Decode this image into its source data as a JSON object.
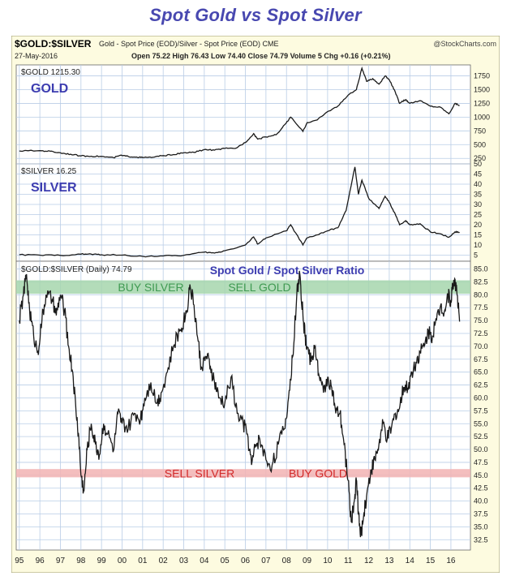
{
  "page_title": "Spot Gold vs Spot Silver",
  "colors": {
    "title": "#4848b0",
    "frame_bg": "#fdfbe0",
    "plot_bg": "#ffffff",
    "grid": "#b9cde6",
    "line": "#1a1a1a",
    "panel_label": "#3c3cb0",
    "buy_band": "#a6d6ad",
    "sell_band": "#f2b3b3",
    "buy_text": "#3f9a52",
    "sell_text": "#d22a2a"
  },
  "header": {
    "symbol": "$GOLD:$SILVER",
    "description": "Gold - Spot Price (EOD)/Silver - Spot Price (EOD) CME",
    "watermark": "@StockCharts.com",
    "date": "27-May-2016",
    "ohlc": "Open 75.22  High 76.43  Low 74.40  Close 74.79  Volume 5  Chg +0.16 (+0.21%)"
  },
  "chart_data": [
    {
      "type": "line",
      "legend": "$GOLD 1215.30",
      "panel_label": "GOLD",
      "ylim": [
        150,
        1950
      ],
      "y_ticks": [
        "1750",
        "1500",
        "1250",
        "1000",
        "750",
        "500",
        "250"
      ],
      "x_tick_labels": [
        "95",
        "96",
        "97",
        "98",
        "99",
        "00",
        "01",
        "02",
        "03",
        "04",
        "05",
        "06",
        "07",
        "08",
        "09",
        "10",
        "11",
        "12",
        "13",
        "14",
        "15",
        "16"
      ],
      "series": [
        {
          "x": [
            1995.0,
            1996.0,
            1996.5,
            1997.0,
            1997.5,
            1998.0,
            1998.5,
            1999.0,
            1999.6,
            1999.9,
            2000.3,
            2000.7,
            2001.0,
            2001.5,
            2002.0,
            2002.5,
            2003.0,
            2003.5,
            2004.0,
            2004.5,
            2005.0,
            2005.5,
            2006.0,
            2006.4,
            2006.6,
            2007.0,
            2007.5,
            2008.0,
            2008.2,
            2008.8,
            2009.0,
            2009.5,
            2010.0,
            2010.5,
            2011.0,
            2011.4,
            2011.67,
            2011.9,
            2012.2,
            2012.5,
            2012.8,
            2013.0,
            2013.3,
            2013.5,
            2013.8,
            2014.0,
            2014.5,
            2015.0,
            2015.5,
            2015.9,
            2016.2,
            2016.42
          ],
          "y": [
            385,
            390,
            380,
            350,
            325,
            295,
            290,
            285,
            260,
            305,
            285,
            275,
            265,
            270,
            300,
            320,
            350,
            360,
            410,
            400,
            430,
            430,
            540,
            700,
            600,
            640,
            680,
            900,
            1000,
            740,
            900,
            950,
            1100,
            1200,
            1400,
            1500,
            1890,
            1650,
            1700,
            1600,
            1750,
            1680,
            1450,
            1250,
            1320,
            1250,
            1300,
            1200,
            1180,
            1060,
            1250,
            1215
          ]
        }
      ]
    },
    {
      "type": "line",
      "legend": "$SILVER 16.25",
      "panel_label": "SILVER",
      "ylim": [
        2,
        50
      ],
      "y_ticks": [
        "50",
        "45",
        "40",
        "35",
        "30",
        "25",
        "20",
        "15",
        "10",
        "5"
      ],
      "x_tick_labels": [
        "95",
        "96",
        "97",
        "98",
        "99",
        "00",
        "01",
        "02",
        "03",
        "04",
        "05",
        "06",
        "07",
        "08",
        "09",
        "10",
        "11",
        "12",
        "13",
        "14",
        "15",
        "16"
      ],
      "series": [
        {
          "x": [
            1995.0,
            1996.0,
            1997.0,
            1998.0,
            1998.5,
            1999.0,
            2000.0,
            2001.0,
            2002.0,
            2003.0,
            2004.0,
            2004.5,
            2005.0,
            2006.0,
            2006.4,
            2006.6,
            2007.0,
            2008.0,
            2008.2,
            2008.8,
            2009.0,
            2009.5,
            2010.0,
            2010.5,
            2010.9,
            2011.33,
            2011.5,
            2011.67,
            2012.0,
            2012.3,
            2012.5,
            2012.8,
            2013.0,
            2013.3,
            2013.5,
            2013.8,
            2014.0,
            2014.5,
            2015.0,
            2015.5,
            2015.9,
            2016.2,
            2016.42
          ],
          "y": [
            5.2,
            5.0,
            4.9,
            5.5,
            5.5,
            5.2,
            5.0,
            4.4,
            4.6,
            4.9,
            6.5,
            6.0,
            7.2,
            10,
            14,
            10.5,
            13.5,
            17,
            20,
            10,
            13.5,
            15,
            17,
            18.5,
            27,
            48.5,
            35,
            42,
            33,
            30,
            28,
            34,
            31,
            25,
            20,
            22,
            20,
            20.5,
            16.5,
            15.5,
            13.8,
            16.5,
            16.25
          ]
        }
      ]
    },
    {
      "type": "line",
      "legend": "$GOLD:$SILVER (Daily) 74.79",
      "title": "Spot Gold / Spot Silver Ratio",
      "ylim": [
        30.5,
        86.5
      ],
      "y_ticks": [
        "85.0",
        "82.5",
        "80.0",
        "77.5",
        "75.0",
        "72.5",
        "70.0",
        "67.5",
        "65.0",
        "62.5",
        "60.0",
        "57.5",
        "55.0",
        "52.5",
        "50.0",
        "47.5",
        "45.0",
        "42.5",
        "40.0",
        "37.5",
        "35.0",
        "32.5"
      ],
      "bands": [
        {
          "kind": "buy",
          "range": [
            80.2,
            82.8
          ],
          "labels": [
            "BUY SILVER",
            "SELL GOLD"
          ]
        },
        {
          "kind": "sell",
          "range": [
            44.6,
            46.2
          ],
          "labels": [
            "SELL SILVER",
            "BUY GOLD"
          ]
        }
      ],
      "x_tick_labels": [
        "95",
        "96",
        "97",
        "98",
        "99",
        "00",
        "01",
        "02",
        "03",
        "04",
        "05",
        "06",
        "07",
        "08",
        "09",
        "10",
        "11",
        "12",
        "13",
        "14",
        "15",
        "16"
      ],
      "series": [
        {
          "x": [
            1995.0,
            1995.2,
            1995.35,
            1995.5,
            1995.7,
            1995.9,
            1996.1,
            1996.3,
            1996.6,
            1996.8,
            1997.0,
            1997.2,
            1997.4,
            1997.6,
            1997.75,
            1997.9,
            1998.0,
            1998.15,
            1998.3,
            1998.5,
            1998.7,
            1998.9,
            1999.1,
            1999.3,
            1999.6,
            1999.8,
            2000.0,
            2000.3,
            2000.6,
            2000.9,
            2001.1,
            2001.4,
            2001.7,
            2001.9,
            2002.2,
            2002.5,
            2002.8,
            2003.0,
            2003.15,
            2003.3,
            2003.5,
            2003.7,
            2003.85,
            2004.1,
            2004.3,
            2004.5,
            2004.7,
            2005.0,
            2005.3,
            2005.6,
            2005.9,
            2006.1,
            2006.3,
            2006.5,
            2006.7,
            2007.0,
            2007.3,
            2007.6,
            2007.9,
            2008.1,
            2008.3,
            2008.5,
            2008.65,
            2008.8,
            2008.9,
            2009.0,
            2009.2,
            2009.4,
            2009.6,
            2009.8,
            2010.0,
            2010.2,
            2010.4,
            2010.6,
            2010.8,
            2011.0,
            2011.15,
            2011.3,
            2011.4,
            2011.5,
            2011.6,
            2011.75,
            2011.9,
            2012.1,
            2012.3,
            2012.5,
            2012.7,
            2012.9,
            2013.1,
            2013.3,
            2013.5,
            2013.7,
            2013.9,
            2014.1,
            2014.3,
            2014.5,
            2014.7,
            2014.9,
            2015.1,
            2015.3,
            2015.5,
            2015.7,
            2015.85,
            2016.0,
            2016.1,
            2016.2,
            2016.3,
            2016.42
          ],
          "y": [
            75,
            80,
            84,
            77,
            72,
            69,
            75,
            80,
            79,
            76,
            80,
            77,
            70,
            65,
            58,
            52,
            45,
            42,
            50,
            55,
            51,
            49,
            55,
            53,
            50,
            57,
            55,
            54,
            57,
            56,
            60,
            63,
            59,
            61,
            65,
            70,
            73,
            75,
            77,
            82,
            78,
            71,
            66,
            68,
            66,
            63,
            60,
            59,
            64,
            57,
            55,
            53,
            47,
            51,
            52,
            48,
            47,
            51,
            54,
            60,
            68,
            80,
            84,
            76,
            72,
            70,
            67,
            70,
            64,
            61,
            64,
            62,
            57,
            57,
            51,
            44,
            36,
            40,
            44,
            38,
            33,
            37,
            41,
            46,
            48,
            51,
            55,
            52,
            54,
            57,
            58,
            62,
            62,
            65,
            67,
            69,
            70,
            73,
            72,
            75,
            78,
            77,
            80,
            79,
            82,
            83,
            80,
            74.79
          ]
        }
      ]
    }
  ]
}
